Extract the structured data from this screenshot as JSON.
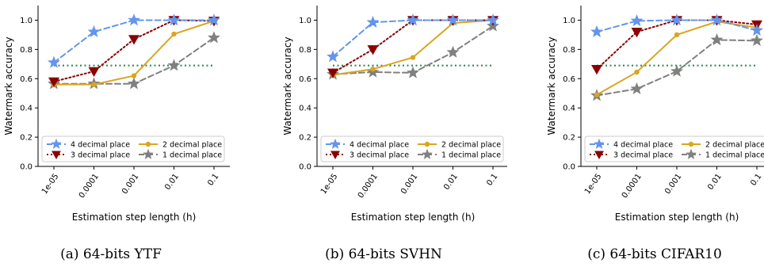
{
  "chart_data": [
    {
      "type": "line",
      "caption": "(a) 64-bits YTF",
      "ylabel": "Watermark accuracy",
      "xlabel": "Estimation step length (h)",
      "categories": [
        "1e-05",
        "0.0001",
        "0.001",
        "0.01",
        "0.1"
      ],
      "ylim": [
        0,
        1.1
      ],
      "yticks": [
        "0.0",
        "0.2",
        "0.4",
        "0.6",
        "0.8",
        "1.0"
      ],
      "baseline": 0.69,
      "legend_position": "lower-right",
      "grid": false,
      "series": [
        {
          "name": "4 decimal place",
          "values": [
            0.71,
            0.92,
            1.0,
            1.0,
            1.0
          ],
          "color": "#6495ED",
          "marker": "star",
          "dash": "dashed"
        },
        {
          "name": "3 decimal place",
          "values": [
            0.58,
            0.65,
            0.87,
            1.0,
            0.995
          ],
          "color": "#8B0000",
          "marker": "triangle-down",
          "dash": "dotted"
        },
        {
          "name": "2 decimal place",
          "values": [
            0.56,
            0.56,
            0.62,
            0.905,
            0.995
          ],
          "color": "#DAA520",
          "marker": "circle",
          "dash": "solid"
        },
        {
          "name": "1 decimal place",
          "values": [
            0.565,
            0.565,
            0.565,
            0.69,
            0.88
          ],
          "color": "#808080",
          "marker": "star",
          "dash": "dashed"
        }
      ]
    },
    {
      "type": "line",
      "caption": "(b) 64-bits SVHN",
      "ylabel": "Watermark accuracy",
      "xlabel": "Estimation step length (h)",
      "categories": [
        "1e-05",
        "0.0001",
        "0.001",
        "0.01",
        "0.1"
      ],
      "ylim": [
        0,
        1.1
      ],
      "yticks": [
        "0.0",
        "0.2",
        "0.4",
        "0.6",
        "0.8",
        "1.0"
      ],
      "baseline": 0.69,
      "legend_position": "lower-right",
      "grid": false,
      "series": [
        {
          "name": "4 decimal place",
          "values": [
            0.75,
            0.985,
            1.0,
            1.0,
            1.0
          ],
          "color": "#6495ED",
          "marker": "star",
          "dash": "dashed"
        },
        {
          "name": "3 decimal place",
          "values": [
            0.64,
            0.8,
            1.0,
            1.0,
            1.0
          ],
          "color": "#8B0000",
          "marker": "triangle-down",
          "dash": "dotted"
        },
        {
          "name": "2 decimal place",
          "values": [
            0.625,
            0.665,
            0.745,
            0.98,
            1.0
          ],
          "color": "#DAA520",
          "marker": "circle",
          "dash": "solid"
        },
        {
          "name": "1 decimal place",
          "values": [
            0.63,
            0.645,
            0.64,
            0.78,
            0.96
          ],
          "color": "#808080",
          "marker": "star",
          "dash": "dashed"
        }
      ]
    },
    {
      "type": "line",
      "caption": "(c) 64-bits CIFAR10",
      "ylabel": "Watermark accuracy",
      "xlabel": "Estimation step length (h)",
      "categories": [
        "1e-05",
        "0.0001",
        "0.001",
        "0.01",
        "0.1"
      ],
      "ylim": [
        0,
        1.1
      ],
      "yticks": [
        "0.0",
        "0.2",
        "0.4",
        "0.6",
        "0.8",
        "1.0"
      ],
      "baseline": 0.69,
      "legend_position": "lower-right",
      "grid": false,
      "series": [
        {
          "name": "4 decimal place",
          "values": [
            0.92,
            0.995,
            1.0,
            1.0,
            0.93
          ],
          "color": "#6495ED",
          "marker": "star",
          "dash": "dashed"
        },
        {
          "name": "3 decimal place",
          "values": [
            0.665,
            0.92,
            1.0,
            1.0,
            0.97
          ],
          "color": "#8B0000",
          "marker": "triangle-down",
          "dash": "dotted"
        },
        {
          "name": "2 decimal place",
          "values": [
            0.49,
            0.645,
            0.9,
            0.99,
            0.95
          ],
          "color": "#DAA520",
          "marker": "circle",
          "dash": "solid"
        },
        {
          "name": "1 decimal place",
          "values": [
            0.485,
            0.53,
            0.65,
            0.865,
            0.86
          ],
          "color": "#808080",
          "marker": "star",
          "dash": "dashed"
        }
      ]
    }
  ]
}
